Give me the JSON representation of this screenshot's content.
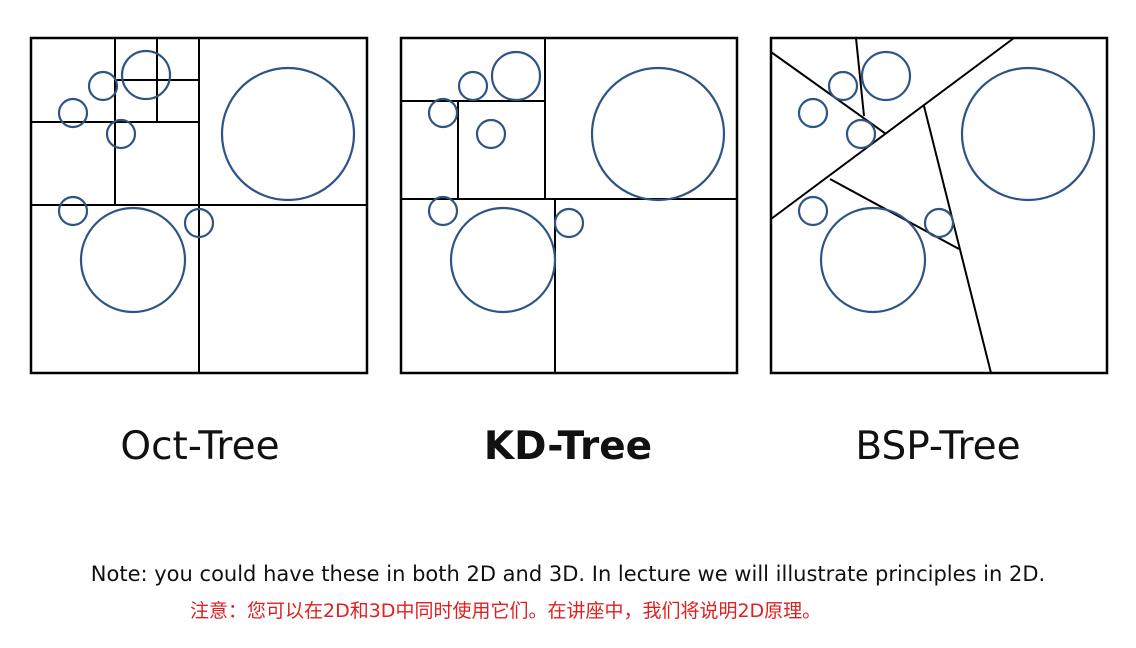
{
  "labels": {
    "oct_tree": "Oct-Tree",
    "kd_tree": "KD-Tree",
    "bsp_tree": "BSP-Tree"
  },
  "note": {
    "english": "Note: you could have these in both 2D and 3D.  In lecture we will illustrate principles in 2D.",
    "chinese": "注意：您可以在2D和3D中同时使用它们。在讲座中，我们将说明2D原理。"
  },
  "colors": {
    "circle_stroke": "#2e5486",
    "line_stroke": "#000000",
    "chinese_note": "#e02020"
  }
}
